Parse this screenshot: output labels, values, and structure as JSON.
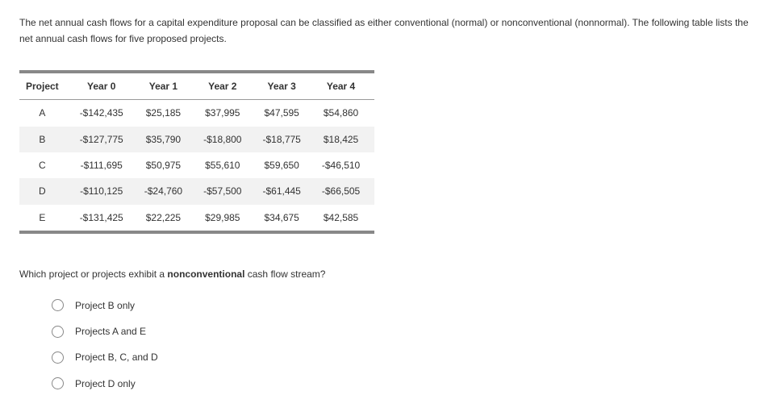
{
  "intro": "The net annual cash flows for a capital expenditure proposal can be classified as either conventional (normal) or nonconventional (nonnormal). The following table lists the net annual cash flows for five proposed projects.",
  "table": {
    "headers": [
      "Project",
      "Year 0",
      "Year 1",
      "Year 2",
      "Year 3",
      "Year 4"
    ],
    "rows": [
      [
        "A",
        "-$142,435",
        "$25,185",
        "$37,995",
        "$47,595",
        "$54,860"
      ],
      [
        "B",
        "-$127,775",
        "$35,790",
        "-$18,800",
        "-$18,775",
        "$18,425"
      ],
      [
        "C",
        "-$111,695",
        "$50,975",
        "$55,610",
        "$59,650",
        "-$46,510"
      ],
      [
        "D",
        "-$110,125",
        "-$24,760",
        "-$57,500",
        "-$61,445",
        "-$66,505"
      ],
      [
        "E",
        "-$131,425",
        "$22,225",
        "$29,985",
        "$34,675",
        "$42,585"
      ]
    ]
  },
  "question_prefix": "Which project or projects exhibit a ",
  "question_bold": "nonconventional",
  "question_suffix": " cash flow stream?",
  "options": [
    "Project B only",
    "Projects A and E",
    "Project B, C, and D",
    "Project D only"
  ]
}
